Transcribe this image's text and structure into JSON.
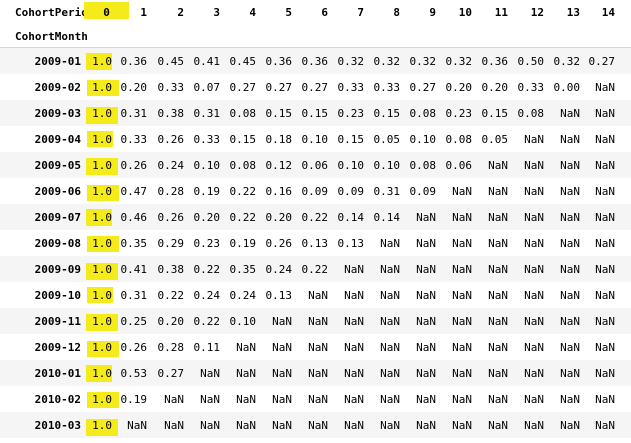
{
  "table": {
    "columns_name": "CohortPeriod",
    "index_name": "CohortMonth",
    "columns": [
      "0",
      "1",
      "2",
      "3",
      "4",
      "5",
      "6",
      "7",
      "8",
      "9",
      "10",
      "11",
      "12",
      "13",
      "14"
    ],
    "rows": [
      {
        "index": "2009-01",
        "values": [
          "1.0",
          "0.36",
          "0.45",
          "0.41",
          "0.45",
          "0.36",
          "0.36",
          "0.32",
          "0.32",
          "0.32",
          "0.32",
          "0.36",
          "0.50",
          "0.32",
          "0.27"
        ]
      },
      {
        "index": "2009-02",
        "values": [
          "1.0",
          "0.20",
          "0.33",
          "0.07",
          "0.27",
          "0.27",
          "0.27",
          "0.33",
          "0.33",
          "0.27",
          "0.20",
          "0.20",
          "0.33",
          "0.00",
          "NaN"
        ]
      },
      {
        "index": "2009-03",
        "values": [
          "1.0",
          "0.31",
          "0.38",
          "0.31",
          "0.08",
          "0.15",
          "0.15",
          "0.23",
          "0.15",
          "0.08",
          "0.23",
          "0.15",
          "0.08",
          "NaN",
          "NaN"
        ]
      },
      {
        "index": "2009-04",
        "values": [
          "1.0",
          "0.33",
          "0.26",
          "0.33",
          "0.15",
          "0.18",
          "0.10",
          "0.15",
          "0.05",
          "0.10",
          "0.08",
          "0.05",
          "NaN",
          "NaN",
          "NaN"
        ]
      },
      {
        "index": "2009-05",
        "values": [
          "1.0",
          "0.26",
          "0.24",
          "0.10",
          "0.08",
          "0.12",
          "0.06",
          "0.10",
          "0.10",
          "0.08",
          "0.06",
          "NaN",
          "NaN",
          "NaN",
          "NaN"
        ]
      },
      {
        "index": "2009-06",
        "values": [
          "1.0",
          "0.47",
          "0.28",
          "0.19",
          "0.22",
          "0.16",
          "0.09",
          "0.09",
          "0.31",
          "0.09",
          "NaN",
          "NaN",
          "NaN",
          "NaN",
          "NaN"
        ]
      },
      {
        "index": "2009-07",
        "values": [
          "1.0",
          "0.46",
          "0.26",
          "0.20",
          "0.22",
          "0.20",
          "0.22",
          "0.14",
          "0.14",
          "NaN",
          "NaN",
          "NaN",
          "NaN",
          "NaN",
          "NaN"
        ]
      },
      {
        "index": "2009-08",
        "values": [
          "1.0",
          "0.35",
          "0.29",
          "0.23",
          "0.19",
          "0.26",
          "0.13",
          "0.13",
          "NaN",
          "NaN",
          "NaN",
          "NaN",
          "NaN",
          "NaN",
          "NaN"
        ]
      },
      {
        "index": "2009-09",
        "values": [
          "1.0",
          "0.41",
          "0.38",
          "0.22",
          "0.35",
          "0.24",
          "0.22",
          "NaN",
          "NaN",
          "NaN",
          "NaN",
          "NaN",
          "NaN",
          "NaN",
          "NaN"
        ]
      },
      {
        "index": "2009-10",
        "values": [
          "1.0",
          "0.31",
          "0.22",
          "0.24",
          "0.24",
          "0.13",
          "NaN",
          "NaN",
          "NaN",
          "NaN",
          "NaN",
          "NaN",
          "NaN",
          "NaN",
          "NaN"
        ]
      },
      {
        "index": "2009-11",
        "values": [
          "1.0",
          "0.25",
          "0.20",
          "0.22",
          "0.10",
          "NaN",
          "NaN",
          "NaN",
          "NaN",
          "NaN",
          "NaN",
          "NaN",
          "NaN",
          "NaN",
          "NaN"
        ]
      },
      {
        "index": "2009-12",
        "values": [
          "1.0",
          "0.26",
          "0.28",
          "0.11",
          "NaN",
          "NaN",
          "NaN",
          "NaN",
          "NaN",
          "NaN",
          "NaN",
          "NaN",
          "NaN",
          "NaN",
          "NaN"
        ]
      },
      {
        "index": "2010-01",
        "values": [
          "1.0",
          "0.53",
          "0.27",
          "NaN",
          "NaN",
          "NaN",
          "NaN",
          "NaN",
          "NaN",
          "NaN",
          "NaN",
          "NaN",
          "NaN",
          "NaN",
          "NaN"
        ]
      },
      {
        "index": "2010-02",
        "values": [
          "1.0",
          "0.19",
          "NaN",
          "NaN",
          "NaN",
          "NaN",
          "NaN",
          "NaN",
          "NaN",
          "NaN",
          "NaN",
          "NaN",
          "NaN",
          "NaN",
          "NaN"
        ]
      },
      {
        "index": "2010-03",
        "values": [
          "1.0",
          "NaN",
          "NaN",
          "NaN",
          "NaN",
          "NaN",
          "NaN",
          "NaN",
          "NaN",
          "NaN",
          "NaN",
          "NaN",
          "NaN",
          "NaN",
          "NaN"
        ]
      }
    ]
  },
  "colors": {
    "highlight": "#f5ea1a",
    "stripe": "#f5f5f5"
  }
}
